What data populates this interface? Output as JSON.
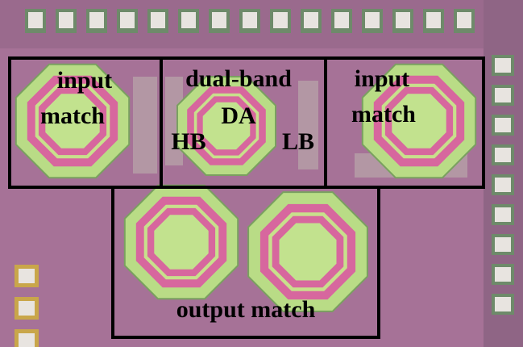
{
  "regions": [
    {
      "lines": [
        "input",
        "match"
      ]
    },
    {
      "lines": [
        "dual-band",
        "DA"
      ],
      "ports": [
        "HB",
        "LB"
      ]
    },
    {
      "lines": [
        "input",
        "match"
      ]
    },
    {
      "lines": [
        "output match"
      ]
    }
  ]
}
